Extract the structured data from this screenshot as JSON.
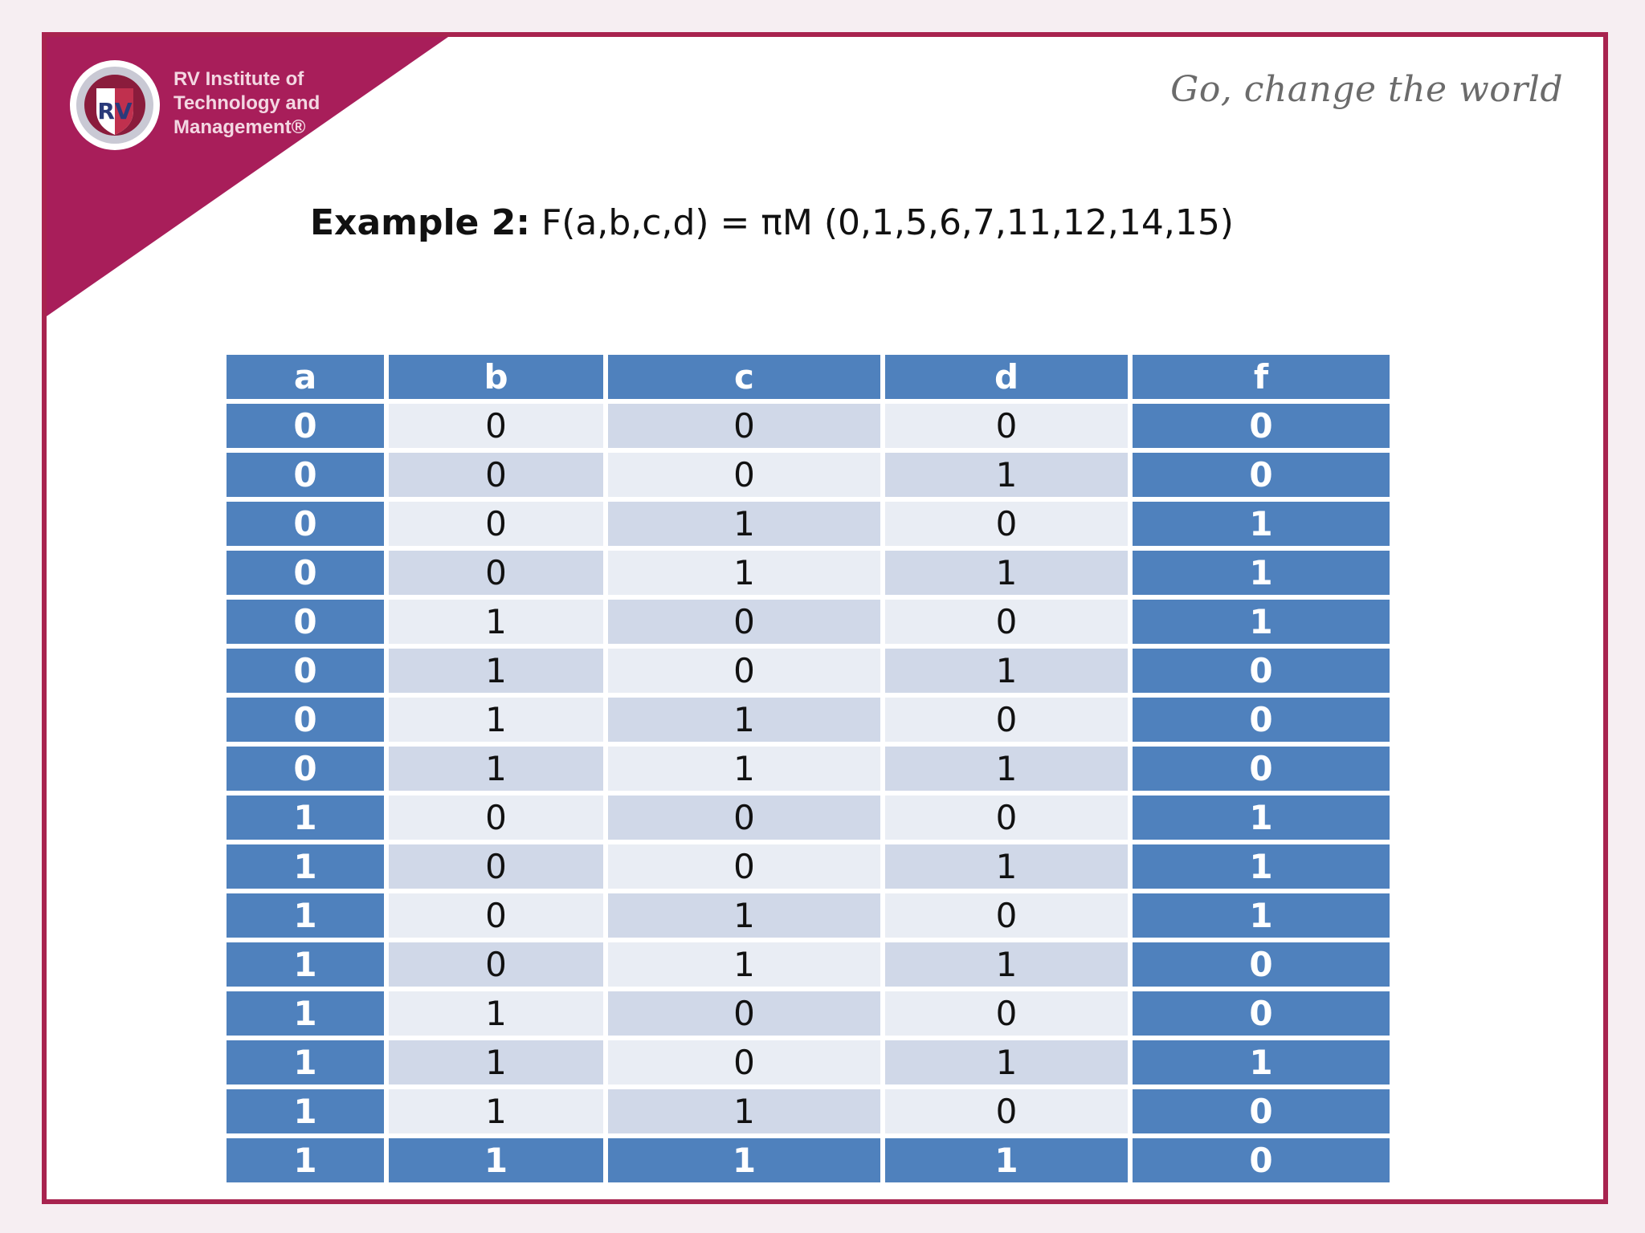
{
  "branding": {
    "logo_emblem_text": "RV",
    "logo_lines": [
      "RV Institute of",
      "Technology and",
      "Management®"
    ],
    "tagline": "Go, change the world",
    "banner_color": "#a81e5a"
  },
  "heading": {
    "label": "Example 2:",
    "expression": "F(a,b,c,d) = πM (0,1,5,6,7,11,12,14,15)"
  },
  "table": {
    "header_color": "#4f81bd",
    "columns": [
      "a",
      "b",
      "c",
      "d",
      "f"
    ],
    "rows": [
      [
        "0",
        "0",
        "0",
        "0",
        "0"
      ],
      [
        "0",
        "0",
        "0",
        "1",
        "0"
      ],
      [
        "0",
        "0",
        "1",
        "0",
        "1"
      ],
      [
        "0",
        "0",
        "1",
        "1",
        "1"
      ],
      [
        "0",
        "1",
        "0",
        "0",
        "1"
      ],
      [
        "0",
        "1",
        "0",
        "1",
        "0"
      ],
      [
        "0",
        "1",
        "1",
        "0",
        "0"
      ],
      [
        "0",
        "1",
        "1",
        "1",
        "0"
      ],
      [
        "1",
        "0",
        "0",
        "0",
        "1"
      ],
      [
        "1",
        "0",
        "0",
        "1",
        "1"
      ],
      [
        "1",
        "0",
        "1",
        "0",
        "1"
      ],
      [
        "1",
        "0",
        "1",
        "1",
        "0"
      ],
      [
        "1",
        "1",
        "0",
        "0",
        "0"
      ],
      [
        "1",
        "1",
        "0",
        "1",
        "1"
      ],
      [
        "1",
        "1",
        "1",
        "0",
        "0"
      ],
      [
        "1",
        "1",
        "1",
        "1",
        "0"
      ]
    ]
  }
}
